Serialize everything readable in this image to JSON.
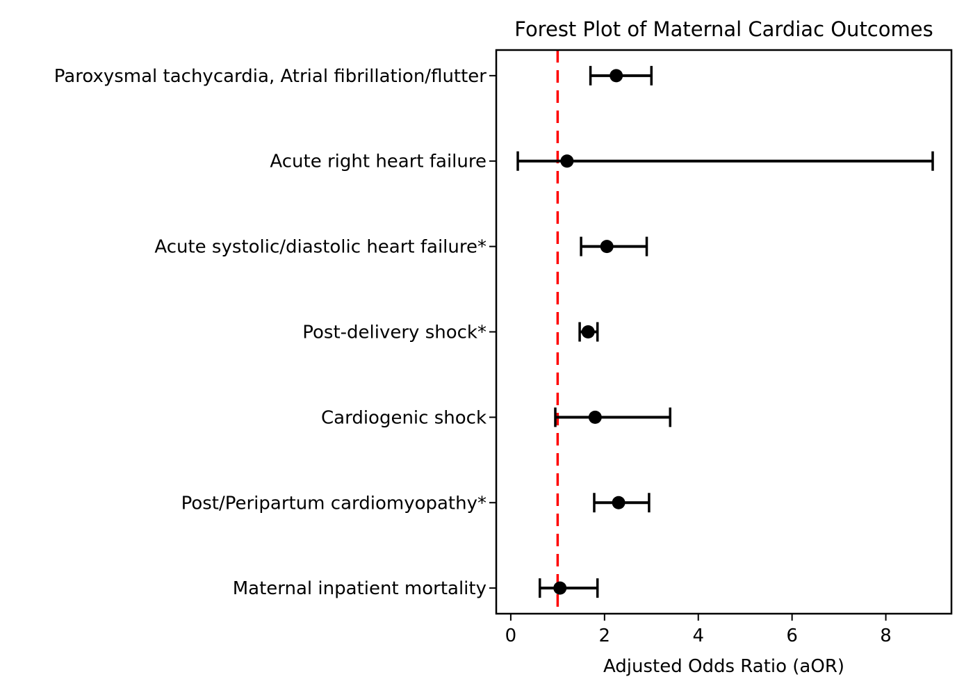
{
  "chart_data": {
    "type": "forest",
    "title": "Forest Plot of Maternal Cardiac Outcomes",
    "xlabel": "Adjusted Odds Ratio (aOR)",
    "ylabel": "",
    "x_ticks": [
      0,
      2,
      4,
      6,
      8
    ],
    "xlim": [
      -0.31,
      9.4
    ],
    "y_margin": 0.3,
    "grid": false,
    "legend": "none",
    "reference_line": {
      "x": 1,
      "color": "#ff0000",
      "style": "dashed"
    },
    "colors": {
      "marker": "#000000",
      "errorbar": "#000000",
      "axis": "#000000",
      "background": "#ffffff"
    },
    "categories": [
      "Paroxysmal tachycardia, Atrial fibrillation/flutter",
      "Acute right heart failure",
      "Acute systolic/diastolic heart failure*",
      "Post-delivery shock*",
      "Cardiogenic shock",
      "Post/Peripartum cardiomyopathy*",
      "Maternal inpatient mortality"
    ],
    "points": [
      {
        "label": "Paroxysmal tachycardia, Atrial fibrillation/flutter",
        "aor": 2.25,
        "ci_low": 1.7,
        "ci_high": 3.0
      },
      {
        "label": "Acute right heart failure",
        "aor": 1.2,
        "ci_low": 0.15,
        "ci_high": 9.0
      },
      {
        "label": "Acute systolic/diastolic heart failure*",
        "aor": 2.05,
        "ci_low": 1.5,
        "ci_high": 2.9
      },
      {
        "label": "Post-delivery shock*",
        "aor": 1.65,
        "ci_low": 1.47,
        "ci_high": 1.85
      },
      {
        "label": "Cardiogenic shock",
        "aor": 1.8,
        "ci_low": 0.95,
        "ci_high": 3.4
      },
      {
        "label": "Post/Peripartum cardiomyopathy*",
        "aor": 2.3,
        "ci_low": 1.78,
        "ci_high": 2.95
      },
      {
        "label": "Maternal inpatient mortality",
        "aor": 1.05,
        "ci_low": 0.62,
        "ci_high": 1.85
      }
    ]
  }
}
